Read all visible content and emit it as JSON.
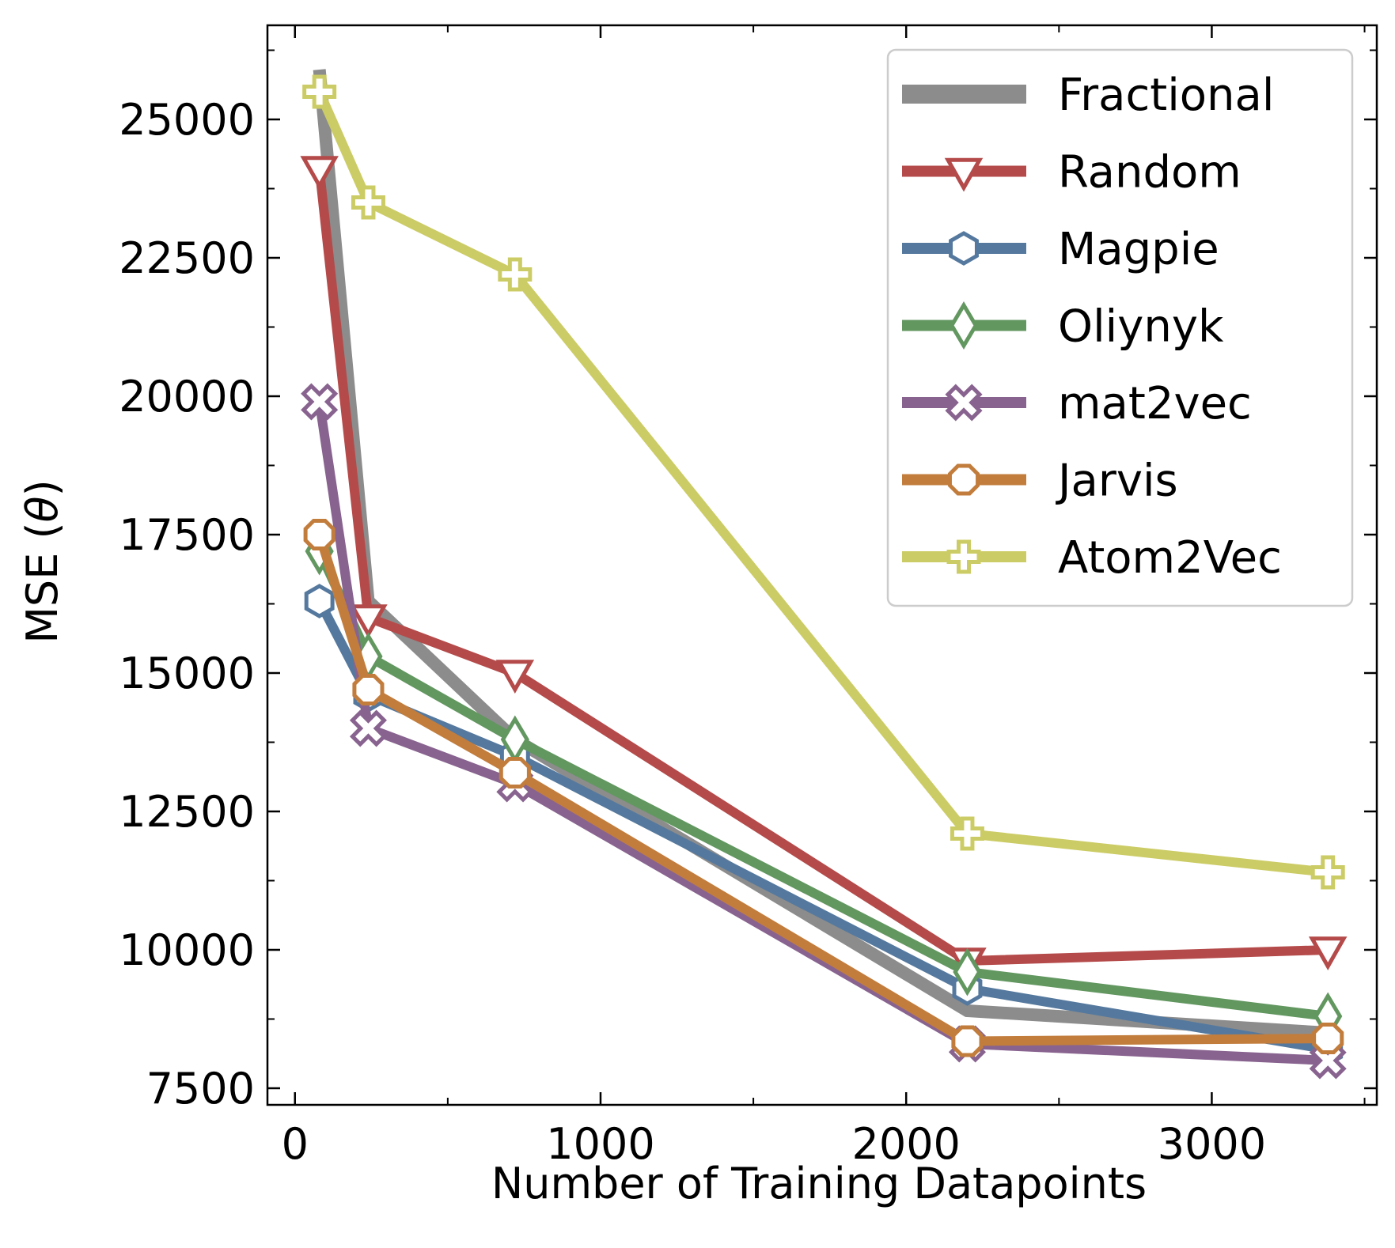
{
  "chart_data": {
    "type": "line",
    "title": "",
    "xlabel": "Number of Training Datapoints",
    "ylabel_prefix": "MSE (",
    "ylabel_symbol": "θ",
    "ylabel_suffix": ")",
    "xlim": [
      -90,
      3540
    ],
    "ylim": [
      7200,
      26700
    ],
    "xticks": [
      0,
      1000,
      2000,
      3000
    ],
    "yticks": [
      7500,
      10000,
      12500,
      15000,
      17500,
      20000,
      22500,
      25000
    ],
    "legend_position": "top-right",
    "grid": false,
    "series": [
      {
        "name": "Fractional",
        "color": "#8c8c8c",
        "marker": "none",
        "x": [
          80,
          240,
          720,
          2200,
          3380
        ],
        "y": [
          25900,
          16300,
          13800,
          8900,
          8500
        ]
      },
      {
        "name": "Random",
        "color": "#b54a4a",
        "marker": "triangle-down",
        "x": [
          80,
          240,
          720,
          2200,
          3380
        ],
        "y": [
          24100,
          16000,
          15000,
          9800,
          10000
        ]
      },
      {
        "name": "Magpie",
        "color": "#55799e",
        "marker": "hexagon",
        "x": [
          80,
          240,
          720,
          2200,
          3380
        ],
        "y": [
          16300,
          14600,
          13500,
          9300,
          8200
        ]
      },
      {
        "name": "Oliynyk",
        "color": "#629760",
        "marker": "diamond",
        "x": [
          80,
          240,
          720,
          2200,
          3380
        ],
        "y": [
          17200,
          15300,
          13800,
          9600,
          8800
        ]
      },
      {
        "name": "mat2vec",
        "color": "#88638f",
        "marker": "x",
        "x": [
          80,
          240,
          720,
          2200,
          3380
        ],
        "y": [
          19900,
          14000,
          13000,
          8300,
          8000
        ]
      },
      {
        "name": "Jarvis",
        "color": "#c27d3d",
        "marker": "octagon",
        "x": [
          80,
          240,
          720,
          2200,
          3380
        ],
        "y": [
          17500,
          14700,
          13200,
          8350,
          8400
        ]
      },
      {
        "name": "Atom2Vec",
        "color": "#cccc66",
        "marker": "plus",
        "x": [
          80,
          240,
          720,
          2200,
          3380
        ],
        "y": [
          25500,
          23500,
          22200,
          12100,
          11400
        ]
      }
    ]
  }
}
